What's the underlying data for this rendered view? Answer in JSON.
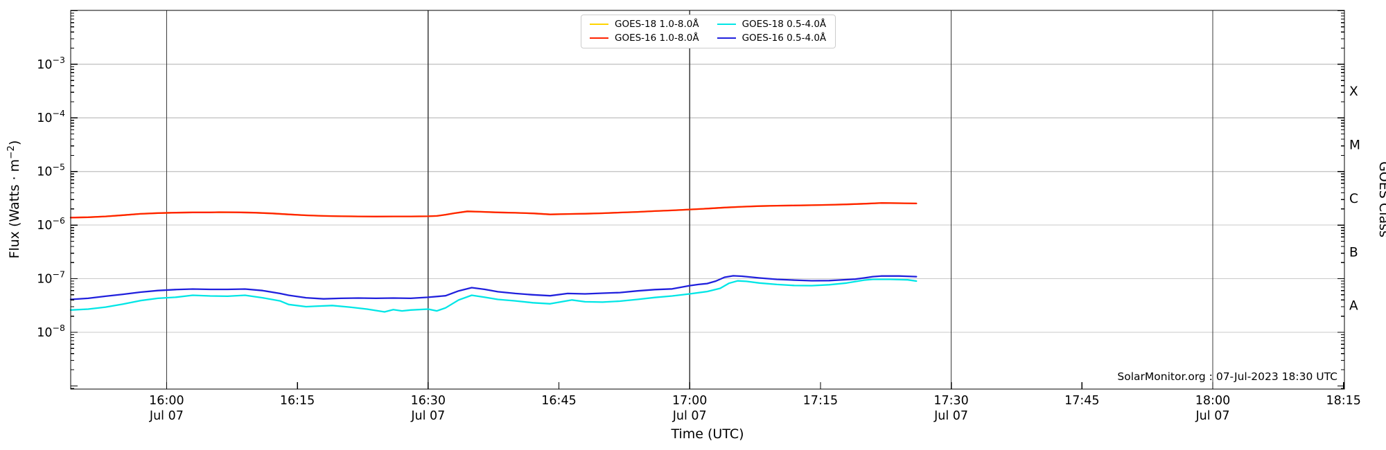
{
  "annotation": "SolarMonitor.org : 07-Jul-2023 18:30 UTC",
  "chart_data": {
    "type": "line",
    "title": "",
    "xlabel": "Time (UTC)",
    "ylabel": {
      "prefix": "Flux (Watts · m",
      "sup": "−2",
      "suffix": ")"
    },
    "ylabel_right": "GOES Class",
    "grid": "horizontal decades on, vertical lines each 30 min",
    "legend_position": "upper center",
    "legend_display_order": [
      0,
      2,
      1,
      3
    ],
    "x_axis": {
      "reference": "minutes after 16:00 UTC on Jul 07",
      "min_t": -11,
      "max_t": 135.1,
      "ticks": [
        {
          "t": 0,
          "label": "16:00",
          "sub": "Jul 07"
        },
        {
          "t": 15,
          "label": "16:15",
          "sub": ""
        },
        {
          "t": 30,
          "label": "16:30",
          "sub": "Jul 07"
        },
        {
          "t": 45,
          "label": "16:45",
          "sub": ""
        },
        {
          "t": 60,
          "label": "17:00",
          "sub": "Jul 07"
        },
        {
          "t": 75,
          "label": "17:15",
          "sub": ""
        },
        {
          "t": 90,
          "label": "17:30",
          "sub": "Jul 07"
        },
        {
          "t": 105,
          "label": "17:45",
          "sub": ""
        },
        {
          "t": 120,
          "label": "18:00",
          "sub": "Jul 07"
        },
        {
          "t": 135,
          "label": "18:15",
          "sub": ""
        }
      ],
      "vlines_t": [
        0,
        30,
        60,
        90,
        120
      ]
    },
    "y_axis": {
      "scale": "log",
      "units": "Watts per square metre",
      "min_exp": -9.06,
      "max_exp": -1.995,
      "tick_exps": [
        -3,
        -4,
        -5,
        -6,
        -7,
        -8
      ],
      "class_labels": [
        {
          "label": "X",
          "exp": -3.5
        },
        {
          "label": "M",
          "exp": -4.5
        },
        {
          "label": "C",
          "exp": -5.5
        },
        {
          "label": "B",
          "exp": -6.5
        },
        {
          "label": "A",
          "exp": -7.5
        }
      ]
    },
    "colors": {
      "grid": "#c9c9c9",
      "vline": "#3a3a3a",
      "spine": "#000000",
      "background": "#ffffff"
    },
    "series": [
      {
        "name": "GOES-18 1.0-8.0Å",
        "color": "#ffd400",
        "note": "coincident with GOES-16 1.0-8.0Å trace, hidden beneath it",
        "points": [
          [
            -11,
            1.38e-06
          ],
          [
            -9,
            1.4e-06
          ],
          [
            -7,
            1.45e-06
          ],
          [
            -5,
            1.53e-06
          ],
          [
            -3,
            1.62e-06
          ],
          [
            -1,
            1.67e-06
          ],
          [
            1,
            1.7e-06
          ],
          [
            3,
            1.72e-06
          ],
          [
            5,
            1.72e-06
          ],
          [
            6,
            1.74e-06
          ],
          [
            8,
            1.73e-06
          ],
          [
            10,
            1.7e-06
          ],
          [
            12,
            1.65e-06
          ],
          [
            14,
            1.58e-06
          ],
          [
            16,
            1.52e-06
          ],
          [
            18,
            1.48e-06
          ],
          [
            20,
            1.46e-06
          ],
          [
            22,
            1.45e-06
          ],
          [
            24,
            1.44e-06
          ],
          [
            26,
            1.45e-06
          ],
          [
            28,
            1.45e-06
          ],
          [
            30,
            1.46e-06
          ],
          [
            31,
            1.48e-06
          ],
          [
            32,
            1.56e-06
          ],
          [
            33,
            1.66e-06
          ],
          [
            34.5,
            1.8e-06
          ],
          [
            36,
            1.77e-06
          ],
          [
            38,
            1.72e-06
          ],
          [
            40,
            1.69e-06
          ],
          [
            42,
            1.65e-06
          ],
          [
            44,
            1.58e-06
          ],
          [
            46,
            1.61e-06
          ],
          [
            48,
            1.63e-06
          ],
          [
            50,
            1.66e-06
          ],
          [
            52,
            1.71e-06
          ],
          [
            54,
            1.76e-06
          ],
          [
            56,
            1.82e-06
          ],
          [
            58,
            1.88e-06
          ],
          [
            60,
            1.95e-06
          ],
          [
            62,
            2.03e-06
          ],
          [
            64,
            2.12e-06
          ],
          [
            66,
            2.2e-06
          ],
          [
            68,
            2.26e-06
          ],
          [
            70,
            2.3e-06
          ],
          [
            72,
            2.32e-06
          ],
          [
            74,
            2.35e-06
          ],
          [
            76,
            2.38e-06
          ],
          [
            78,
            2.43e-06
          ],
          [
            80,
            2.5e-06
          ],
          [
            82,
            2.58e-06
          ],
          [
            84,
            2.56e-06
          ],
          [
            86,
            2.53e-06
          ]
        ]
      },
      {
        "name": "GOES-16 1.0-8.0Å",
        "color": "#ff2200",
        "points": [
          [
            -11,
            1.38e-06
          ],
          [
            -9,
            1.4e-06
          ],
          [
            -7,
            1.45e-06
          ],
          [
            -5,
            1.53e-06
          ],
          [
            -3,
            1.62e-06
          ],
          [
            -1,
            1.67e-06
          ],
          [
            1,
            1.7e-06
          ],
          [
            3,
            1.72e-06
          ],
          [
            5,
            1.72e-06
          ],
          [
            6,
            1.74e-06
          ],
          [
            8,
            1.73e-06
          ],
          [
            10,
            1.7e-06
          ],
          [
            12,
            1.65e-06
          ],
          [
            14,
            1.58e-06
          ],
          [
            16,
            1.52e-06
          ],
          [
            18,
            1.48e-06
          ],
          [
            20,
            1.46e-06
          ],
          [
            22,
            1.45e-06
          ],
          [
            24,
            1.44e-06
          ],
          [
            26,
            1.45e-06
          ],
          [
            28,
            1.45e-06
          ],
          [
            30,
            1.46e-06
          ],
          [
            31,
            1.48e-06
          ],
          [
            32,
            1.56e-06
          ],
          [
            33,
            1.66e-06
          ],
          [
            34.5,
            1.8e-06
          ],
          [
            36,
            1.77e-06
          ],
          [
            38,
            1.72e-06
          ],
          [
            40,
            1.69e-06
          ],
          [
            42,
            1.65e-06
          ],
          [
            44,
            1.58e-06
          ],
          [
            46,
            1.61e-06
          ],
          [
            48,
            1.63e-06
          ],
          [
            50,
            1.66e-06
          ],
          [
            52,
            1.71e-06
          ],
          [
            54,
            1.76e-06
          ],
          [
            56,
            1.82e-06
          ],
          [
            58,
            1.88e-06
          ],
          [
            60,
            1.95e-06
          ],
          [
            62,
            2.03e-06
          ],
          [
            64,
            2.12e-06
          ],
          [
            66,
            2.2e-06
          ],
          [
            68,
            2.26e-06
          ],
          [
            70,
            2.3e-06
          ],
          [
            72,
            2.32e-06
          ],
          [
            74,
            2.35e-06
          ],
          [
            76,
            2.38e-06
          ],
          [
            78,
            2.43e-06
          ],
          [
            80,
            2.5e-06
          ],
          [
            82,
            2.58e-06
          ],
          [
            84,
            2.56e-06
          ],
          [
            86,
            2.53e-06
          ]
        ]
      },
      {
        "name": "GOES-18 0.5-4.0Å",
        "color": "#00e6e6",
        "points": [
          [
            -11,
            2.6e-08
          ],
          [
            -9,
            2.7e-08
          ],
          [
            -7,
            2.95e-08
          ],
          [
            -5,
            3.35e-08
          ],
          [
            -3,
            3.9e-08
          ],
          [
            -1,
            4.3e-08
          ],
          [
            1,
            4.5e-08
          ],
          [
            3,
            4.9e-08
          ],
          [
            5,
            4.75e-08
          ],
          [
            7,
            4.7e-08
          ],
          [
            9,
            4.9e-08
          ],
          [
            11,
            4.4e-08
          ],
          [
            13,
            3.85e-08
          ],
          [
            14,
            3.3e-08
          ],
          [
            16,
            3e-08
          ],
          [
            17,
            3.05e-08
          ],
          [
            19,
            3.15e-08
          ],
          [
            21,
            2.95e-08
          ],
          [
            23,
            2.7e-08
          ],
          [
            25,
            2.4e-08
          ],
          [
            26,
            2.65e-08
          ],
          [
            27,
            2.5e-08
          ],
          [
            28,
            2.6e-08
          ],
          [
            30,
            2.7e-08
          ],
          [
            31,
            2.5e-08
          ],
          [
            32,
            2.85e-08
          ],
          [
            33.5,
            4e-08
          ],
          [
            35,
            4.9e-08
          ],
          [
            36.5,
            4.5e-08
          ],
          [
            38,
            4.1e-08
          ],
          [
            40,
            3.85e-08
          ],
          [
            42,
            3.55e-08
          ],
          [
            44,
            3.4e-08
          ],
          [
            46.5,
            4e-08
          ],
          [
            48,
            3.7e-08
          ],
          [
            50,
            3.65e-08
          ],
          [
            52,
            3.8e-08
          ],
          [
            54,
            4.1e-08
          ],
          [
            56,
            4.45e-08
          ],
          [
            58,
            4.75e-08
          ],
          [
            60,
            5.2e-08
          ],
          [
            62,
            5.75e-08
          ],
          [
            63.5,
            6.6e-08
          ],
          [
            64.5,
            8.2e-08
          ],
          [
            65.5,
            9.1e-08
          ],
          [
            66.5,
            8.9e-08
          ],
          [
            68,
            8.3e-08
          ],
          [
            70,
            7.8e-08
          ],
          [
            72,
            7.45e-08
          ],
          [
            74,
            7.4e-08
          ],
          [
            76,
            7.7e-08
          ],
          [
            78,
            8.3e-08
          ],
          [
            80,
            9.4e-08
          ],
          [
            81,
            9.7e-08
          ],
          [
            83,
            9.7e-08
          ],
          [
            85,
            9.5e-08
          ],
          [
            86,
            9e-08
          ]
        ]
      },
      {
        "name": "GOES-16 0.5-4.0Å",
        "color": "#2020dd",
        "points": [
          [
            -11,
            4.1e-08
          ],
          [
            -9,
            4.3e-08
          ],
          [
            -7,
            4.7e-08
          ],
          [
            -5,
            5.1e-08
          ],
          [
            -3,
            5.6e-08
          ],
          [
            -1,
            6e-08
          ],
          [
            1,
            6.25e-08
          ],
          [
            3,
            6.4e-08
          ],
          [
            5,
            6.3e-08
          ],
          [
            7,
            6.3e-08
          ],
          [
            9,
            6.4e-08
          ],
          [
            11,
            6e-08
          ],
          [
            13,
            5.3e-08
          ],
          [
            14,
            4.9e-08
          ],
          [
            16,
            4.4e-08
          ],
          [
            18,
            4.2e-08
          ],
          [
            20,
            4.3e-08
          ],
          [
            22,
            4.35e-08
          ],
          [
            24,
            4.3e-08
          ],
          [
            26,
            4.35e-08
          ],
          [
            28,
            4.3e-08
          ],
          [
            30,
            4.5e-08
          ],
          [
            32,
            4.8e-08
          ],
          [
            33.5,
            5.9e-08
          ],
          [
            35,
            6.8e-08
          ],
          [
            36.5,
            6.3e-08
          ],
          [
            38,
            5.7e-08
          ],
          [
            40,
            5.3e-08
          ],
          [
            42,
            5e-08
          ],
          [
            44,
            4.8e-08
          ],
          [
            46,
            5.3e-08
          ],
          [
            48,
            5.2e-08
          ],
          [
            50,
            5.35e-08
          ],
          [
            52,
            5.5e-08
          ],
          [
            54,
            5.9e-08
          ],
          [
            56,
            6.25e-08
          ],
          [
            58,
            6.45e-08
          ],
          [
            60,
            7.4e-08
          ],
          [
            61,
            7.8e-08
          ],
          [
            62,
            8.1e-08
          ],
          [
            63,
            9e-08
          ],
          [
            64,
            1.06e-07
          ],
          [
            65,
            1.13e-07
          ],
          [
            66,
            1.11e-07
          ],
          [
            68,
            1.03e-07
          ],
          [
            70,
            9.7e-08
          ],
          [
            72,
            9.4e-08
          ],
          [
            74,
            9.15e-08
          ],
          [
            76,
            9.2e-08
          ],
          [
            77,
            9.4e-08
          ],
          [
            79,
            9.8e-08
          ],
          [
            80,
            1.03e-07
          ],
          [
            81,
            1.09e-07
          ],
          [
            82,
            1.12e-07
          ],
          [
            84,
            1.12e-07
          ],
          [
            85,
            1.105e-07
          ],
          [
            86,
            1.09e-07
          ]
        ]
      }
    ]
  }
}
